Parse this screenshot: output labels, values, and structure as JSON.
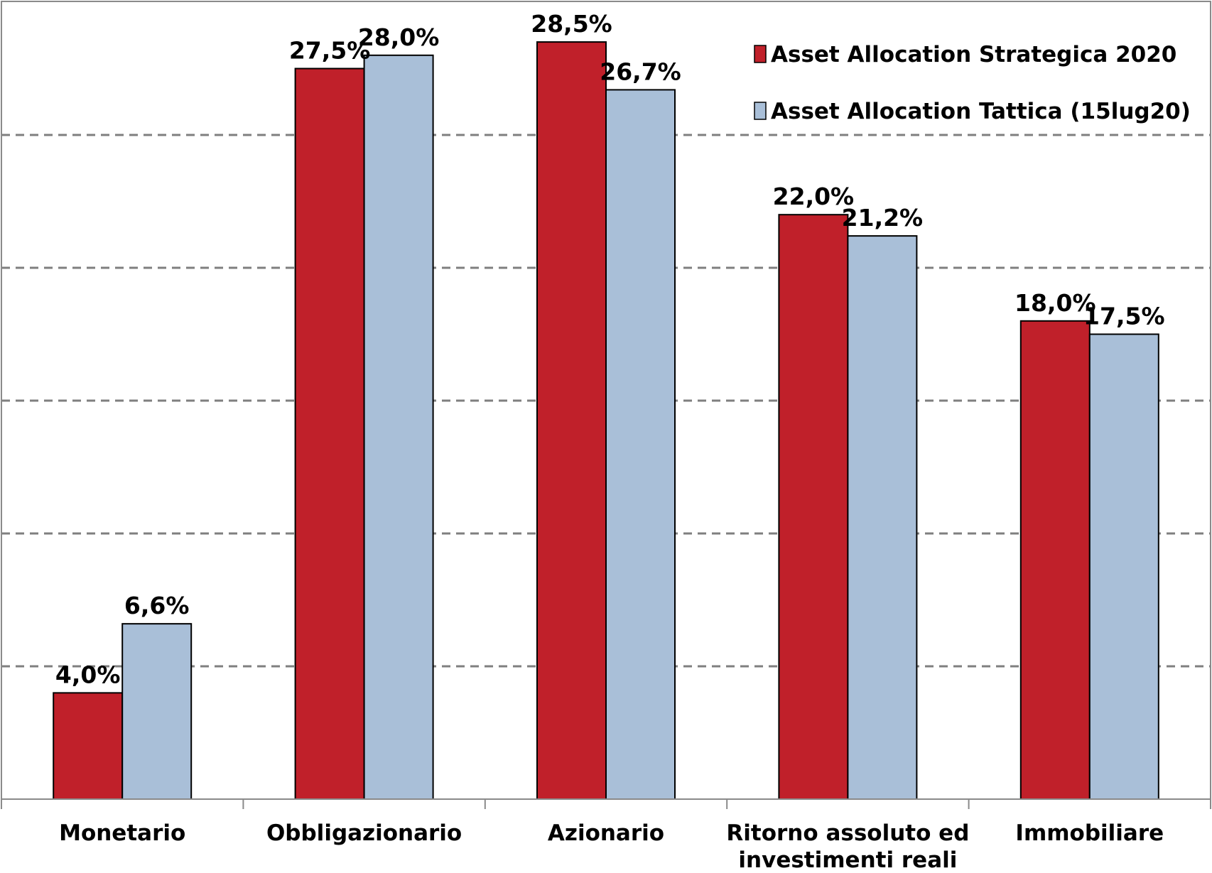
{
  "chart_data": {
    "type": "bar",
    "title": "",
    "xlabel": "",
    "ylabel": "",
    "ylim": [
      0,
      30
    ],
    "grid": true,
    "legend_position": "top-right",
    "categories": [
      [
        "Monetario"
      ],
      [
        "Obbligazionario"
      ],
      [
        "Azionario"
      ],
      [
        "Ritorno assoluto ed",
        "investimenti reali"
      ],
      [
        "Immobiliare"
      ]
    ],
    "series": [
      {
        "name": "Asset Allocation Strategica 2020",
        "color": "#c0202a",
        "values": [
          4.0,
          27.5,
          28.5,
          22.0,
          18.0
        ],
        "labels": [
          "4,0%",
          "27,5%",
          "28,5%",
          "22,0%",
          "18,0%"
        ]
      },
      {
        "name": "Asset Allocation Tattica (15lug20)",
        "color": "#a9bfd8",
        "values": [
          6.6,
          28.0,
          26.7,
          21.2,
          17.5
        ],
        "labels": [
          "6,6%",
          "28,0%",
          "26,7%",
          "21,2%",
          "17,5%"
        ]
      }
    ]
  }
}
